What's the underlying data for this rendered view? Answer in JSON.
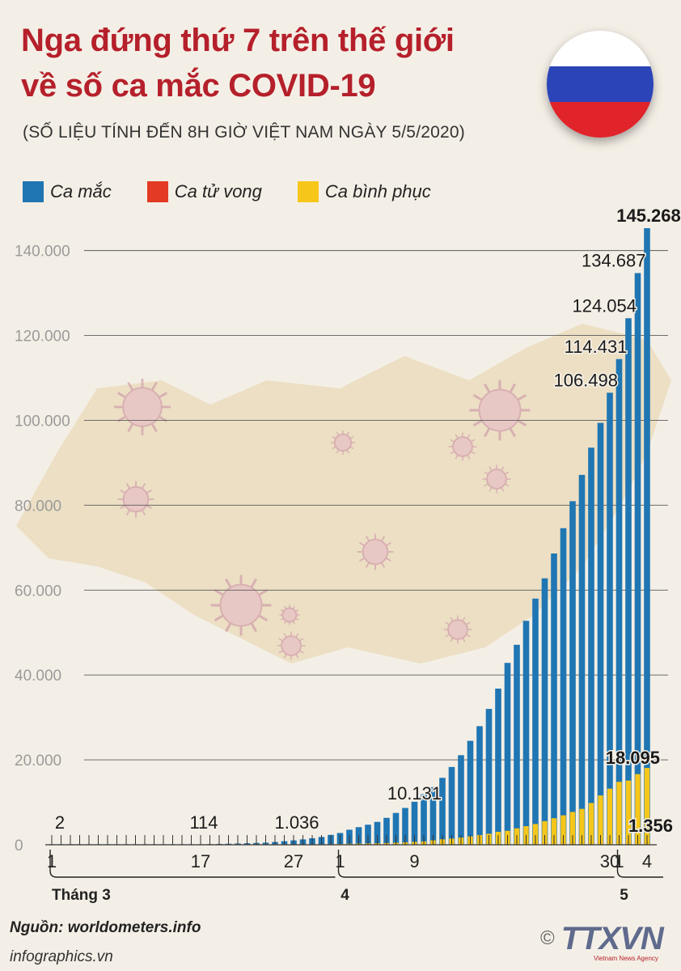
{
  "header": {
    "title_line1": "Nga đứng thứ 7 trên thế giới",
    "title_line2": "về số ca mắc COVID-19",
    "subtitle": "(SỐ LIỆU TÍNH ĐẾN 8H GIỜ VIỆT NAM NGÀY 5/5/2020)"
  },
  "flag": {
    "colors": [
      "#ffffff",
      "#2b45b8",
      "#e0242a"
    ]
  },
  "legend": [
    {
      "label": "Ca mắc",
      "color": "#1f76b3"
    },
    {
      "label": "Ca tử vong",
      "color": "#e23a25"
    },
    {
      "label": "Ca bình phục",
      "color": "#f7c61a"
    }
  ],
  "chart_data": {
    "type": "bar",
    "ylim": [
      0,
      145268
    ],
    "yticks": [
      0,
      20000,
      40000,
      60000,
      80000,
      100000,
      120000,
      140000
    ],
    "ytick_labels": [
      "0",
      "20.000",
      "40.000",
      "60.000",
      "80.000",
      "100.000",
      "120.000",
      "140.000"
    ],
    "grid": true,
    "legend_position": "top-left",
    "categories": [
      "1/3",
      "2/3",
      "3/3",
      "4/3",
      "5/3",
      "6/3",
      "7/3",
      "8/3",
      "9/3",
      "10/3",
      "11/3",
      "12/3",
      "13/3",
      "14/3",
      "15/3",
      "16/3",
      "17/3",
      "18/3",
      "19/3",
      "20/3",
      "21/3",
      "22/3",
      "23/3",
      "24/3",
      "25/3",
      "26/3",
      "27/3",
      "28/3",
      "29/3",
      "30/3",
      "31/3",
      "1/4",
      "2/4",
      "3/4",
      "4/4",
      "5/4",
      "6/4",
      "7/4",
      "8/4",
      "9/4",
      "10/4",
      "11/4",
      "12/4",
      "13/4",
      "14/4",
      "15/4",
      "16/4",
      "17/4",
      "18/4",
      "19/4",
      "20/4",
      "21/4",
      "22/4",
      "23/4",
      "24/4",
      "25/4",
      "26/4",
      "27/4",
      "28/4",
      "29/4",
      "30/4",
      "1/5",
      "2/5",
      "3/5",
      "4/5"
    ],
    "series": [
      {
        "name": "Ca mắc",
        "color": "#1f76b3",
        "values": [
          2,
          3,
          3,
          3,
          4,
          10,
          14,
          17,
          17,
          20,
          28,
          34,
          45,
          59,
          63,
          93,
          114,
          147,
          199,
          253,
          306,
          367,
          438,
          495,
          658,
          840,
          1036,
          1264,
          1534,
          1836,
          2337,
          2777,
          3548,
          4149,
          4731,
          5389,
          6343,
          7497,
          8672,
          10131,
          11917,
          13584,
          15770,
          18328,
          21102,
          24490,
          27938,
          32008,
          36793,
          42853,
          47121,
          52763,
          57999,
          62773,
          68622,
          74588,
          80949,
          87147,
          93558,
          99399,
          106498,
          114431,
          124054,
          134687,
          145268
        ]
      },
      {
        "name": "Ca tử vong",
        "color": "#e23a25",
        "values": [
          0,
          0,
          0,
          0,
          0,
          0,
          0,
          0,
          0,
          0,
          0,
          0,
          0,
          0,
          0,
          0,
          0,
          1,
          1,
          1,
          1,
          1,
          1,
          1,
          3,
          3,
          4,
          4,
          8,
          9,
          17,
          24,
          30,
          34,
          43,
          45,
          47,
          58,
          63,
          76,
          94,
          106,
          130,
          148,
          170,
          198,
          232,
          273,
          313,
          361,
          405,
          456,
          513,
          555,
          615,
          681,
          747,
          794,
          867,
          972,
          1073,
          1073,
          1169,
          1222,
          1356
        ]
      },
      {
        "name": "Ca bình phục",
        "color": "#f7c61a",
        "values": [
          0,
          0,
          0,
          0,
          0,
          0,
          0,
          0,
          0,
          0,
          0,
          0,
          0,
          0,
          0,
          0,
          5,
          8,
          9,
          12,
          12,
          16,
          17,
          22,
          29,
          38,
          45,
          64,
          66,
          113,
          121,
          190,
          235,
          281,
          333,
          355,
          406,
          494,
          580,
          698,
          794,
          1045,
          1291,
          1470,
          1694,
          1986,
          2304,
          2590,
          3057,
          3291,
          3873,
          4383,
          4891,
          5568,
          6250,
          6941,
          7737,
          8458,
          9845,
          11619,
          13220,
          14829,
          15131,
          16639,
          18095
        ]
      }
    ],
    "value_labels": [
      {
        "series": "Ca mắc",
        "index": 0,
        "text": "2"
      },
      {
        "series": "Ca mắc",
        "index": 16,
        "text": "114"
      },
      {
        "series": "Ca mắc",
        "index": 26,
        "text": "1.036"
      },
      {
        "series": "Ca mắc",
        "index": 39,
        "text": "10.131"
      },
      {
        "series": "Ca mắc",
        "index": 60,
        "text": "106.498"
      },
      {
        "series": "Ca mắc",
        "index": 61,
        "text": "114.431"
      },
      {
        "series": "Ca mắc",
        "index": 62,
        "text": "124.054"
      },
      {
        "series": "Ca mắc",
        "index": 63,
        "text": "134.687"
      },
      {
        "series": "Ca mắc",
        "index": 64,
        "text": "145.268",
        "bold": true
      },
      {
        "series": "Ca bình phục",
        "index": 64,
        "text": "18.095",
        "bold": true
      },
      {
        "series": "Ca tử vong",
        "index": 64,
        "text": "1.356",
        "bold": true
      }
    ],
    "x_tick_labels": [
      {
        "index": 0,
        "text": "1"
      },
      {
        "index": 16,
        "text": "17"
      },
      {
        "index": 26,
        "text": "27"
      },
      {
        "index": 31,
        "text": "1"
      },
      {
        "index": 39,
        "text": "9"
      },
      {
        "index": 60,
        "text": "30"
      },
      {
        "index": 61,
        "text": "1"
      },
      {
        "index": 64,
        "text": "4"
      }
    ],
    "month_groups": [
      {
        "label": "Tháng 3",
        "from": 0,
        "to": 30
      },
      {
        "label": "4",
        "from": 31,
        "to": 60
      },
      {
        "label": "5",
        "from": 61,
        "to": 64
      }
    ]
  },
  "footer": {
    "source": "Nguồn: worldometers.info",
    "site": "infographics.vn",
    "copyright": "©",
    "logo": "TTXVN",
    "agency": "Vietnam News Agency"
  }
}
